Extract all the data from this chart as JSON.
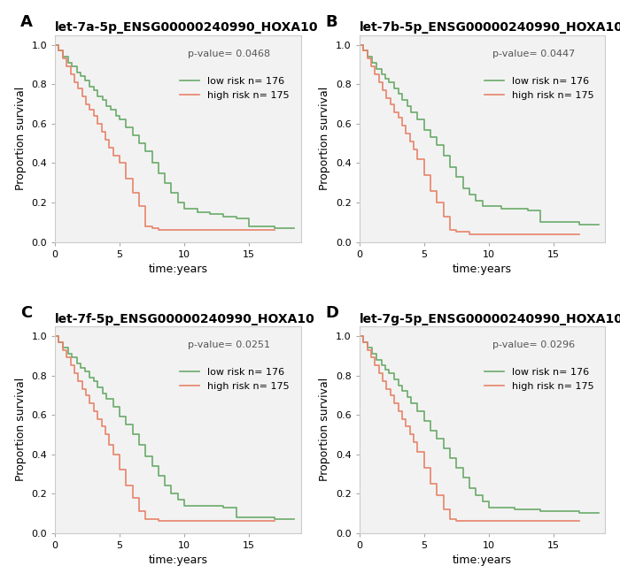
{
  "panels": [
    {
      "label": "A",
      "title": "let-7a-5p_ENSG00000240990_HOXA10",
      "pvalue": "p-value= 0.0468",
      "low_risk_n": 176,
      "high_risk_n": 175,
      "low_risk": {
        "x": [
          0,
          0.3,
          0.6,
          1.0,
          1.3,
          1.7,
          2.0,
          2.3,
          2.7,
          3.0,
          3.3,
          3.7,
          4.0,
          4.3,
          4.7,
          5.0,
          5.5,
          6.0,
          6.5,
          7.0,
          7.5,
          8.0,
          8.5,
          9.0,
          9.5,
          10.0,
          11.0,
          12.0,
          13.0,
          14.0,
          15.0,
          17.0,
          18.5
        ],
        "y": [
          1.0,
          0.97,
          0.94,
          0.91,
          0.89,
          0.86,
          0.84,
          0.82,
          0.79,
          0.77,
          0.74,
          0.72,
          0.69,
          0.67,
          0.64,
          0.62,
          0.58,
          0.54,
          0.5,
          0.46,
          0.4,
          0.35,
          0.3,
          0.25,
          0.2,
          0.17,
          0.15,
          0.14,
          0.13,
          0.12,
          0.08,
          0.07,
          0.07
        ]
      },
      "high_risk": {
        "x": [
          0,
          0.3,
          0.6,
          0.9,
          1.2,
          1.5,
          1.8,
          2.1,
          2.4,
          2.7,
          3.0,
          3.3,
          3.6,
          3.9,
          4.2,
          4.5,
          5.0,
          5.5,
          6.0,
          6.5,
          7.0,
          7.5,
          8.0,
          8.5,
          9.0,
          9.5,
          10.0,
          11.0,
          12.0,
          13.0,
          14.0,
          15.0,
          17.0
        ],
        "y": [
          1.0,
          0.97,
          0.93,
          0.89,
          0.85,
          0.81,
          0.78,
          0.74,
          0.7,
          0.67,
          0.64,
          0.6,
          0.56,
          0.52,
          0.48,
          0.44,
          0.4,
          0.32,
          0.25,
          0.18,
          0.08,
          0.07,
          0.06,
          0.06,
          0.06,
          0.06,
          0.06,
          0.06,
          0.06,
          0.06,
          0.06,
          0.06,
          0.06
        ]
      }
    },
    {
      "label": "B",
      "title": "let-7b-5p_ENSG00000240990_HOXA10",
      "pvalue": "p-value= 0.0447",
      "low_risk_n": 176,
      "high_risk_n": 175,
      "low_risk": {
        "x": [
          0,
          0.3,
          0.6,
          1.0,
          1.3,
          1.7,
          2.0,
          2.3,
          2.7,
          3.0,
          3.3,
          3.7,
          4.0,
          4.5,
          5.0,
          5.5,
          6.0,
          6.5,
          7.0,
          7.5,
          8.0,
          8.5,
          9.0,
          9.5,
          10.0,
          11.0,
          12.0,
          13.0,
          14.0,
          15.0,
          17.0,
          18.5
        ],
        "y": [
          1.0,
          0.97,
          0.94,
          0.91,
          0.88,
          0.85,
          0.83,
          0.81,
          0.78,
          0.75,
          0.72,
          0.69,
          0.66,
          0.62,
          0.57,
          0.53,
          0.49,
          0.44,
          0.38,
          0.33,
          0.27,
          0.24,
          0.21,
          0.18,
          0.18,
          0.17,
          0.17,
          0.16,
          0.1,
          0.1,
          0.09,
          0.09
        ]
      },
      "high_risk": {
        "x": [
          0,
          0.3,
          0.6,
          0.9,
          1.2,
          1.5,
          1.8,
          2.1,
          2.4,
          2.7,
          3.0,
          3.3,
          3.6,
          3.9,
          4.2,
          4.5,
          5.0,
          5.5,
          6.0,
          6.5,
          7.0,
          7.5,
          8.0,
          8.5,
          9.0,
          9.5,
          10.0,
          11.0,
          12.0,
          13.0,
          14.0,
          17.0
        ],
        "y": [
          1.0,
          0.97,
          0.93,
          0.89,
          0.85,
          0.81,
          0.77,
          0.73,
          0.7,
          0.66,
          0.63,
          0.59,
          0.55,
          0.51,
          0.47,
          0.42,
          0.34,
          0.26,
          0.2,
          0.13,
          0.06,
          0.05,
          0.05,
          0.04,
          0.04,
          0.04,
          0.04,
          0.04,
          0.04,
          0.04,
          0.04,
          0.04
        ]
      }
    },
    {
      "label": "C",
      "title": "let-7f-5p_ENSG00000240990_HOXA10",
      "pvalue": "p-value= 0.0251",
      "low_risk_n": 176,
      "high_risk_n": 175,
      "low_risk": {
        "x": [
          0,
          0.3,
          0.6,
          1.0,
          1.3,
          1.7,
          2.0,
          2.3,
          2.7,
          3.0,
          3.3,
          3.7,
          4.0,
          4.5,
          5.0,
          5.5,
          6.0,
          6.5,
          7.0,
          7.5,
          8.0,
          8.5,
          9.0,
          9.5,
          10.0,
          11.0,
          12.0,
          13.0,
          14.0,
          15.0,
          17.0,
          18.5
        ],
        "y": [
          1.0,
          0.97,
          0.94,
          0.91,
          0.89,
          0.86,
          0.84,
          0.82,
          0.79,
          0.77,
          0.74,
          0.71,
          0.68,
          0.64,
          0.59,
          0.55,
          0.5,
          0.45,
          0.39,
          0.34,
          0.29,
          0.24,
          0.2,
          0.17,
          0.14,
          0.14,
          0.14,
          0.13,
          0.08,
          0.08,
          0.07,
          0.07
        ]
      },
      "high_risk": {
        "x": [
          0,
          0.3,
          0.6,
          0.9,
          1.2,
          1.5,
          1.8,
          2.1,
          2.4,
          2.7,
          3.0,
          3.3,
          3.6,
          3.9,
          4.2,
          4.5,
          5.0,
          5.5,
          6.0,
          6.5,
          7.0,
          7.5,
          8.0,
          8.5,
          9.0,
          9.5,
          10.0,
          11.0,
          12.0,
          13.0,
          14.0,
          17.0
        ],
        "y": [
          1.0,
          0.97,
          0.93,
          0.89,
          0.85,
          0.81,
          0.77,
          0.73,
          0.7,
          0.66,
          0.62,
          0.58,
          0.54,
          0.5,
          0.45,
          0.4,
          0.32,
          0.24,
          0.18,
          0.11,
          0.07,
          0.07,
          0.06,
          0.06,
          0.06,
          0.06,
          0.06,
          0.06,
          0.06,
          0.06,
          0.06,
          0.06
        ]
      }
    },
    {
      "label": "D",
      "title": "let-7g-5p_ENSG00000240990_HOXA10",
      "pvalue": "p-value= 0.0296",
      "low_risk_n": 176,
      "high_risk_n": 175,
      "low_risk": {
        "x": [
          0,
          0.3,
          0.6,
          1.0,
          1.3,
          1.7,
          2.0,
          2.3,
          2.7,
          3.0,
          3.3,
          3.7,
          4.0,
          4.5,
          5.0,
          5.5,
          6.0,
          6.5,
          7.0,
          7.5,
          8.0,
          8.5,
          9.0,
          9.5,
          10.0,
          11.0,
          12.0,
          13.0,
          14.0,
          15.0,
          17.0,
          18.5
        ],
        "y": [
          1.0,
          0.97,
          0.94,
          0.91,
          0.88,
          0.85,
          0.83,
          0.81,
          0.78,
          0.75,
          0.72,
          0.69,
          0.66,
          0.62,
          0.57,
          0.52,
          0.48,
          0.43,
          0.38,
          0.33,
          0.28,
          0.23,
          0.19,
          0.16,
          0.13,
          0.13,
          0.12,
          0.12,
          0.11,
          0.11,
          0.1,
          0.1
        ]
      },
      "high_risk": {
        "x": [
          0,
          0.3,
          0.6,
          0.9,
          1.2,
          1.5,
          1.8,
          2.1,
          2.4,
          2.7,
          3.0,
          3.3,
          3.6,
          3.9,
          4.2,
          4.5,
          5.0,
          5.5,
          6.0,
          6.5,
          7.0,
          7.5,
          8.0,
          8.5,
          9.0,
          9.5,
          10.0,
          11.0,
          12.0,
          13.0,
          14.0,
          17.0
        ],
        "y": [
          1.0,
          0.97,
          0.93,
          0.89,
          0.85,
          0.81,
          0.77,
          0.73,
          0.7,
          0.66,
          0.62,
          0.58,
          0.54,
          0.5,
          0.46,
          0.41,
          0.33,
          0.25,
          0.19,
          0.12,
          0.07,
          0.06,
          0.06,
          0.06,
          0.06,
          0.06,
          0.06,
          0.06,
          0.06,
          0.06,
          0.06,
          0.06
        ]
      }
    }
  ],
  "low_risk_color": "#6aaa6a",
  "high_risk_color": "#e8836a",
  "background_color": "#ffffff",
  "plot_bg_color": "#f2f2f2",
  "ylabel": "Proportion survival",
  "xlabel": "time:years",
  "ylim": [
    0,
    1.05
  ],
  "xlim": [
    0,
    19
  ],
  "yticks": [
    0,
    0.2,
    0.4,
    0.6,
    0.8,
    1.0
  ],
  "xticks": [
    0,
    5,
    10,
    15
  ],
  "title_fontsize": 10,
  "label_fontsize": 13,
  "tick_fontsize": 8,
  "legend_fontsize": 8,
  "pvalue_fontsize": 8,
  "axis_label_fontsize": 9
}
